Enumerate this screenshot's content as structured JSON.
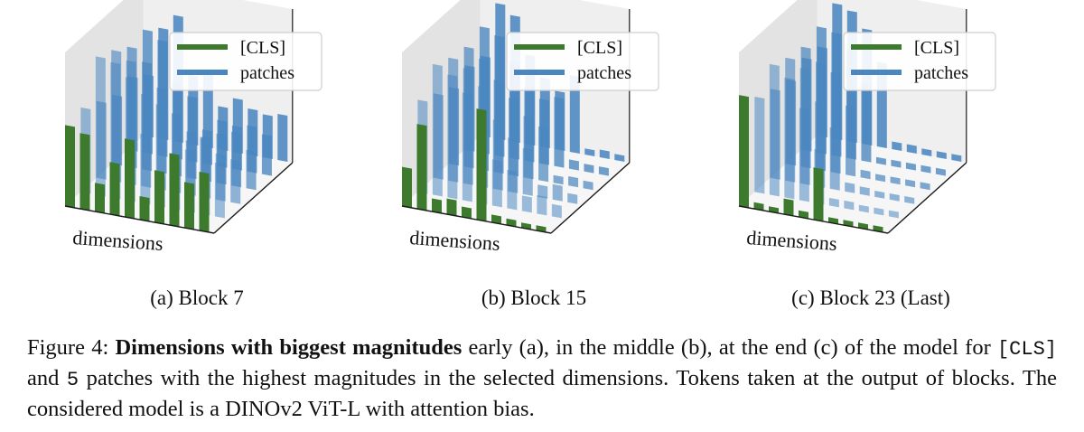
{
  "colors": {
    "cls": "#3d7a2e",
    "patches": "#4a86bf",
    "pane": "#efefef",
    "pane_dark": "#e3e3e3",
    "axis": "#1a1a1a"
  },
  "legend": {
    "cls_label": "[CLS]",
    "patches_label": "patches"
  },
  "chart_data": [
    {
      "type": "bar",
      "subtitle": "(a) Block 7",
      "xlabel": "dimensions",
      "cls_values": [
        0.62,
        0.58,
        0.22,
        0.4,
        0.6,
        0.18,
        0.4,
        0.55,
        0.35,
        0.45
      ],
      "patch_rows": [
        [
          0.55,
          0.9,
          0.88,
          0.8,
          0.45,
          0.2,
          0.3,
          0.4,
          0.5,
          0.35
        ],
        [
          0.5,
          0.85,
          0.8,
          0.6,
          0.55,
          0.25,
          0.35,
          0.38,
          0.3,
          0.28
        ],
        [
          0.45,
          0.78,
          0.7,
          0.55,
          0.4,
          0.3,
          0.28,
          0.32,
          0.35,
          0.25
        ],
        [
          0.48,
          0.8,
          0.75,
          0.5,
          0.42,
          0.22,
          0.3,
          0.28,
          0.3,
          0.26
        ],
        [
          0.4,
          0.72,
          0.82,
          0.45,
          0.5,
          0.28,
          0.35,
          0.3,
          0.28,
          0.3
        ]
      ]
    },
    {
      "type": "bar",
      "subtitle": "(b) Block 15",
      "xlabel": "dimensions",
      "cls_values": [
        0.3,
        0.65,
        0.1,
        0.12,
        0.08,
        0.85,
        0.06,
        0.05,
        0.04,
        0.04
      ],
      "patch_rows": [
        [
          0.6,
          0.85,
          0.8,
          0.7,
          0.4,
          0.3,
          0.25,
          0.1,
          0.12,
          0.08
        ],
        [
          0.55,
          0.8,
          0.75,
          0.65,
          0.45,
          0.35,
          0.3,
          0.08,
          0.1,
          0.06
        ],
        [
          0.5,
          0.78,
          0.72,
          0.6,
          0.5,
          0.4,
          0.35,
          0.05,
          0.06,
          0.05
        ],
        [
          0.55,
          0.82,
          0.78,
          0.62,
          0.48,
          0.42,
          0.45,
          0.06,
          0.05,
          0.05
        ],
        [
          0.52,
          0.88,
          0.82,
          0.58,
          0.45,
          0.38,
          0.5,
          0.04,
          0.05,
          0.04
        ]
      ]
    },
    {
      "type": "bar",
      "subtitle": "(c) Block 23 (Last)",
      "xlabel": "dimensions",
      "cls_values": [
        0.85,
        0.05,
        0.04,
        0.12,
        0.05,
        0.4,
        0.04,
        0.04,
        0.04,
        0.04
      ],
      "patch_rows": [
        [
          0.62,
          0.85,
          0.78,
          0.6,
          0.35,
          0.05,
          0.05,
          0.04,
          0.04,
          0.04
        ],
        [
          0.58,
          0.8,
          0.75,
          0.55,
          0.4,
          0.06,
          0.05,
          0.04,
          0.04,
          0.04
        ],
        [
          0.55,
          0.78,
          0.7,
          0.65,
          0.45,
          0.05,
          0.04,
          0.04,
          0.04,
          0.04
        ],
        [
          0.6,
          0.82,
          0.8,
          0.7,
          0.5,
          0.04,
          0.04,
          0.04,
          0.04,
          0.04
        ],
        [
          0.58,
          0.88,
          0.85,
          0.75,
          0.55,
          0.05,
          0.05,
          0.04,
          0.04,
          0.04
        ]
      ]
    }
  ],
  "caption": {
    "prefix": "Figure 4: ",
    "bold": "Dimensions with biggest magnitudes",
    "part1": " early (a), in the middle (b), at the end (c) of the model for ",
    "cls_mono": "[CLS]",
    "part2": " and ",
    "five_mono": "5",
    "part3": " patches with the highest magnitudes in the selected dimensions.  Tokens taken at the output of blocks. The considered model is a DINOv2 ViT-L with attention bias."
  }
}
